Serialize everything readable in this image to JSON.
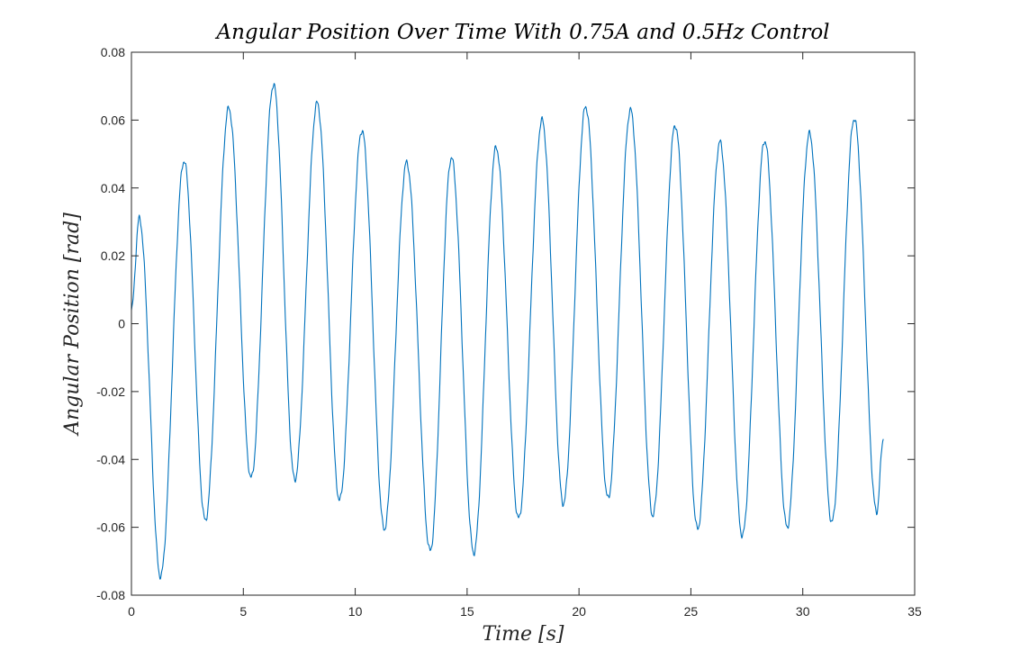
{
  "chart_data": {
    "type": "line",
    "title": "Angular Position Over Time With 0.75A and 0.5Hz Control",
    "xlabel": "Time [s]",
    "ylabel": "Angular Position [rad]",
    "xlim": [
      0,
      35
    ],
    "ylim": [
      -0.08,
      0.08
    ],
    "xticks": [
      0,
      5,
      10,
      15,
      20,
      25,
      30,
      35
    ],
    "xtick_labels": [
      "0",
      "5",
      "10",
      "15",
      "20",
      "25",
      "30",
      "35"
    ],
    "yticks": [
      -0.08,
      -0.06,
      -0.04,
      -0.02,
      0,
      0.02,
      0.04,
      0.06,
      0.08
    ],
    "ytick_labels": [
      "-0.08",
      "-0.06",
      "-0.04",
      "-0.02",
      "0",
      "0.02",
      "0.04",
      "0.06",
      "0.08"
    ],
    "grid": false,
    "line_color": "#0072BD",
    "series": [
      {
        "x": [
          0,
          0.35,
          1.3,
          2.35,
          3.3,
          4.35,
          5.35,
          6.35,
          7.3,
          8.3,
          9.3,
          10.3,
          11.3,
          12.3,
          13.35,
          14.3,
          15.3,
          16.3,
          17.3,
          18.35,
          19.3,
          20.3,
          21.3,
          22.3,
          23.3,
          24.3,
          25.3,
          26.3,
          27.3,
          28.3,
          29.3,
          30.3,
          31.3,
          32.3,
          33.3,
          33.6
        ],
        "y": [
          0.004,
          0.031,
          -0.0745,
          0.048,
          -0.058,
          0.0635,
          -0.0455,
          0.0705,
          -0.046,
          0.065,
          -0.052,
          0.057,
          -0.0605,
          0.0475,
          -0.067,
          0.049,
          -0.0675,
          0.052,
          -0.0575,
          0.06,
          -0.053,
          0.064,
          -0.0515,
          0.063,
          -0.0565,
          0.0585,
          -0.0605,
          0.0535,
          -0.0625,
          0.054,
          -0.06,
          0.056,
          -0.0585,
          0.0605,
          -0.0555,
          -0.034
        ]
      }
    ]
  }
}
